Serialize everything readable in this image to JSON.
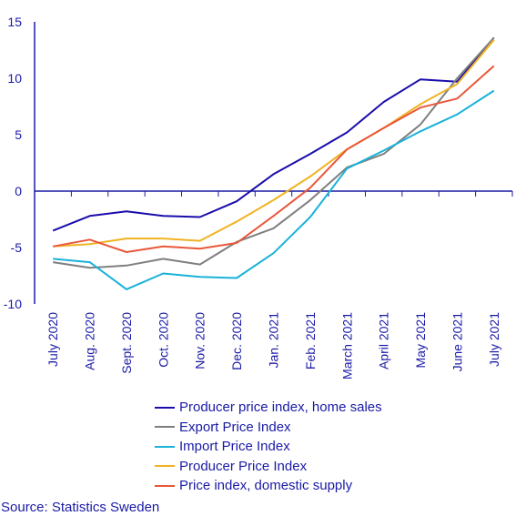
{
  "chart_data": {
    "type": "line",
    "title": "",
    "xlabel": "",
    "ylabel": "",
    "ylim": [
      -10,
      15
    ],
    "yticks": [
      15,
      10,
      5,
      0,
      -5,
      -10
    ],
    "categories": [
      "July 2020",
      "Aug. 2020",
      "Sept. 2020",
      "Oct. 2020",
      "Nov. 2020",
      "Dec. 2020",
      "Jan. 2021",
      "Feb. 2021",
      "March 2021",
      "April 2021",
      "May 2021",
      "June 2021",
      "July 2021"
    ],
    "legend_position": "bottom",
    "grid": false,
    "series": [
      {
        "name": "Producer price index, home sales",
        "color": "#1a0dab",
        "values": [
          -3.5,
          -2.2,
          -1.8,
          -2.2,
          -2.3,
          -0.9,
          1.5,
          3.3,
          5.2,
          7.9,
          9.9,
          9.7,
          13.6
        ]
      },
      {
        "name": "Export Price Index",
        "color": "#7f7f7f",
        "values": [
          -6.3,
          -6.8,
          -6.6,
          -6.0,
          -6.5,
          -4.5,
          -3.3,
          -0.8,
          2.1,
          3.3,
          5.9,
          10.0,
          13.6
        ]
      },
      {
        "name": "Import Price Index",
        "color": "#19b2d8",
        "values": [
          -6.0,
          -6.3,
          -8.7,
          -7.3,
          -7.6,
          -7.7,
          -5.5,
          -2.3,
          2.0,
          3.6,
          5.3,
          6.8,
          8.9
        ]
      },
      {
        "name": "Producer Price Index",
        "color": "#f0b323",
        "values": [
          -4.9,
          -4.7,
          -4.2,
          -4.2,
          -4.4,
          -2.7,
          -0.8,
          1.3,
          3.7,
          5.6,
          7.7,
          9.5,
          13.4
        ]
      },
      {
        "name": "Price index, domestic supply",
        "color": "#e9573a",
        "values": [
          -4.9,
          -4.3,
          -5.4,
          -4.9,
          -5.1,
          -4.6,
          -2.2,
          0.3,
          3.7,
          5.6,
          7.4,
          8.2,
          11.1
        ]
      }
    ]
  },
  "source": "Source: Statistics Sweden"
}
